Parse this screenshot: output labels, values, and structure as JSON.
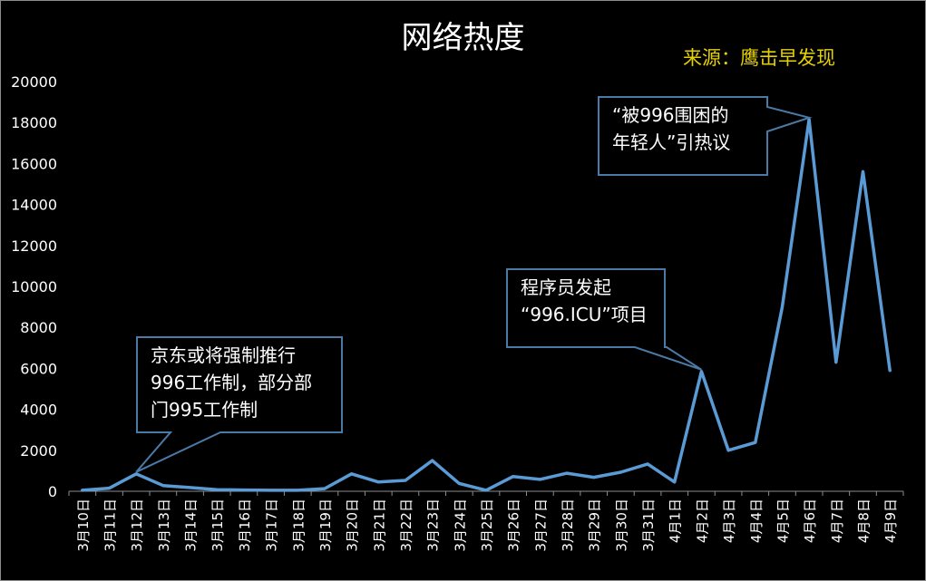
{
  "chart_data": {
    "type": "line",
    "title": "网络热度",
    "source": "来源：鹰击早发现",
    "xlabel": "",
    "ylabel": "",
    "ylim": [
      0,
      20000
    ],
    "yticks": [
      0,
      2000,
      4000,
      6000,
      8000,
      10000,
      12000,
      14000,
      16000,
      18000,
      20000
    ],
    "grid": false,
    "line_color": "#5b9bd5",
    "categories": [
      "3月10日",
      "3月11日",
      "3月12日",
      "3月13日",
      "3月14日",
      "3月15日",
      "3月16日",
      "3月17日",
      "3月18日",
      "3月19日",
      "3月20日",
      "3月21日",
      "3月22日",
      "3月23日",
      "3月24日",
      "3月25日",
      "3月26日",
      "3月27日",
      "3月28日",
      "3月29日",
      "3月30日",
      "3月31日",
      "4月1日",
      "4月2日",
      "4月3日",
      "4月4日",
      "4月5日",
      "4月6日",
      "4月7日",
      "4月8日",
      "4月9日"
    ],
    "values": [
      50,
      150,
      850,
      280,
      180,
      80,
      60,
      50,
      50,
      130,
      850,
      450,
      530,
      1500,
      380,
      50,
      720,
      580,
      880,
      680,
      930,
      1330,
      450,
      5850,
      2000,
      2380,
      9000,
      18150,
      6300,
      15600,
      5900
    ],
    "annotations": [
      {
        "lines": [
          "京东或将强制推行",
          "996工作制，部分部",
          "门995工作制"
        ],
        "category_index": 2
      },
      {
        "lines": [
          "程序员发起",
          "“996.ICU”项目"
        ],
        "category_index": 23
      },
      {
        "lines": [
          "“被996围困的",
          "年轻人”引热议"
        ],
        "category_index": 27
      }
    ]
  }
}
